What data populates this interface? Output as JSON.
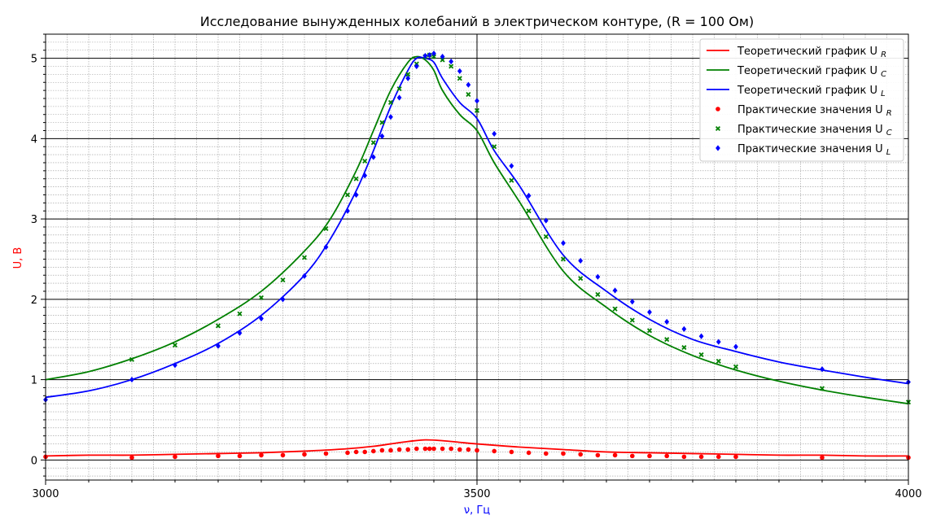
{
  "chart_data": {
    "type": "line",
    "title": "Исследование вынужденных колебаний в электрическом контуре, (R = 100 Ом)",
    "xlabel": "ν, Гц",
    "ylabel": "U, В",
    "xlim": [
      3000,
      4000
    ],
    "ylim": [
      -0.25,
      5.3
    ],
    "x_major_ticks": [
      3000,
      3500,
      4000
    ],
    "x_tick_labels": [
      "3000",
      "3500",
      "4000"
    ],
    "y_major_ticks": [
      0,
      1,
      2,
      3,
      4,
      5
    ],
    "y_tick_labels": [
      "0",
      "1",
      "2",
      "3",
      "4",
      "5"
    ],
    "grid": "major solid black, minor dotted gray",
    "legend_position": "top-right",
    "colors": {
      "R": "#e41a1c",
      "C": "#1a7f1a",
      "L": "#1010ee",
      "title": "#000000",
      "axis_label": "#ff0000",
      "x_label": "#0000ff"
    },
    "series": [
      {
        "name": "Теоретический график U",
        "sub": "R",
        "kind": "line",
        "color": "#ff0000",
        "x": [
          3000,
          3050,
          3100,
          3150,
          3200,
          3250,
          3300,
          3350,
          3380,
          3400,
          3420,
          3440,
          3460,
          3480,
          3500,
          3550,
          3600,
          3650,
          3700,
          3750,
          3800,
          3850,
          3900,
          3950,
          4000
        ],
        "y": [
          0.05,
          0.06,
          0.06,
          0.07,
          0.08,
          0.09,
          0.11,
          0.14,
          0.17,
          0.2,
          0.23,
          0.25,
          0.24,
          0.22,
          0.2,
          0.16,
          0.13,
          0.1,
          0.09,
          0.08,
          0.07,
          0.06,
          0.06,
          0.05,
          0.05
        ]
      },
      {
        "name": "Теоретический график U",
        "sub": "C",
        "kind": "line",
        "color": "#008000",
        "x": [
          3000,
          3050,
          3100,
          3150,
          3200,
          3250,
          3300,
          3330,
          3360,
          3380,
          3400,
          3420,
          3430,
          3440,
          3450,
          3460,
          3480,
          3500,
          3520,
          3550,
          3600,
          3650,
          3700,
          3750,
          3800,
          3850,
          3900,
          3950,
          4000
        ],
        "y": [
          1.0,
          1.1,
          1.26,
          1.47,
          1.75,
          2.1,
          2.6,
          3.0,
          3.6,
          4.1,
          4.6,
          4.95,
          5.02,
          4.98,
          4.85,
          4.6,
          4.3,
          4.1,
          3.7,
          3.2,
          2.35,
          1.9,
          1.55,
          1.3,
          1.12,
          0.98,
          0.87,
          0.78,
          0.7
        ]
      },
      {
        "name": "Теоретический график U",
        "sub": "L",
        "kind": "line",
        "color": "#0000ff",
        "x": [
          3000,
          3050,
          3100,
          3150,
          3200,
          3250,
          3300,
          3330,
          3360,
          3380,
          3400,
          3420,
          3430,
          3440,
          3450,
          3460,
          3480,
          3500,
          3520,
          3550,
          3600,
          3650,
          3700,
          3750,
          3800,
          3850,
          3900,
          3950,
          4000
        ],
        "y": [
          0.78,
          0.86,
          1.0,
          1.2,
          1.45,
          1.8,
          2.3,
          2.75,
          3.35,
          3.85,
          4.4,
          4.85,
          5.0,
          5.0,
          4.95,
          4.75,
          4.45,
          4.25,
          3.85,
          3.4,
          2.55,
          2.1,
          1.75,
          1.5,
          1.35,
          1.22,
          1.12,
          1.03,
          0.95
        ]
      },
      {
        "name": "Практические значения U",
        "sub": "R",
        "kind": "scatter",
        "marker": "circle",
        "color": "#ff0000",
        "x": [
          3000,
          3100,
          3150,
          3200,
          3225,
          3250,
          3275,
          3300,
          3325,
          3350,
          3360,
          3370,
          3380,
          3390,
          3400,
          3410,
          3420,
          3430,
          3440,
          3445,
          3450,
          3460,
          3470,
          3480,
          3490,
          3500,
          3520,
          3540,
          3560,
          3580,
          3600,
          3620,
          3640,
          3660,
          3680,
          3700,
          3720,
          3740,
          3760,
          3780,
          3800,
          3900,
          4000
        ],
        "y": [
          0.04,
          0.03,
          0.04,
          0.05,
          0.05,
          0.06,
          0.06,
          0.07,
          0.08,
          0.09,
          0.1,
          0.1,
          0.11,
          0.12,
          0.12,
          0.13,
          0.13,
          0.14,
          0.14,
          0.14,
          0.14,
          0.14,
          0.14,
          0.13,
          0.13,
          0.12,
          0.11,
          0.1,
          0.09,
          0.08,
          0.08,
          0.07,
          0.06,
          0.06,
          0.05,
          0.05,
          0.05,
          0.04,
          0.04,
          0.04,
          0.04,
          0.03,
          0.03
        ]
      },
      {
        "name": "Практические значения U",
        "sub": "C",
        "kind": "scatter",
        "marker": "x",
        "color": "#008000",
        "x": [
          3100,
          3150,
          3200,
          3225,
          3250,
          3275,
          3300,
          3325,
          3350,
          3360,
          3370,
          3380,
          3390,
          3400,
          3410,
          3420,
          3430,
          3440,
          3445,
          3450,
          3460,
          3470,
          3480,
          3490,
          3500,
          3520,
          3540,
          3560,
          3580,
          3600,
          3620,
          3640,
          3660,
          3680,
          3700,
          3720,
          3740,
          3760,
          3780,
          3800,
          3900,
          4000
        ],
        "y": [
          1.25,
          1.43,
          1.67,
          1.82,
          2.02,
          2.24,
          2.52,
          2.88,
          3.3,
          3.5,
          3.72,
          3.95,
          4.2,
          4.45,
          4.62,
          4.8,
          4.93,
          5.02,
          5.04,
          5.02,
          4.98,
          4.9,
          4.75,
          4.55,
          4.35,
          3.9,
          3.48,
          3.1,
          2.78,
          2.5,
          2.26,
          2.06,
          1.88,
          1.74,
          1.61,
          1.5,
          1.4,
          1.31,
          1.23,
          1.16,
          0.89,
          0.72
        ]
      },
      {
        "name": "Практические значения U",
        "sub": "L",
        "kind": "scatter",
        "marker": "diamond",
        "color": "#0000ff",
        "x": [
          3000,
          3100,
          3150,
          3200,
          3225,
          3250,
          3275,
          3300,
          3325,
          3350,
          3360,
          3370,
          3380,
          3390,
          3400,
          3410,
          3420,
          3430,
          3440,
          3445,
          3450,
          3460,
          3470,
          3480,
          3490,
          3500,
          3520,
          3540,
          3560,
          3580,
          3600,
          3620,
          3640,
          3660,
          3680,
          3700,
          3720,
          3740,
          3760,
          3780,
          3800,
          3900,
          4000
        ],
        "y": [
          0.75,
          1.0,
          1.18,
          1.42,
          1.58,
          1.76,
          2.0,
          2.29,
          2.65,
          3.1,
          3.3,
          3.54,
          3.77,
          4.03,
          4.27,
          4.51,
          4.75,
          4.9,
          5.03,
          5.04,
          5.06,
          5.02,
          4.96,
          4.84,
          4.67,
          4.47,
          4.06,
          3.66,
          3.29,
          2.98,
          2.7,
          2.48,
          2.28,
          2.11,
          1.97,
          1.84,
          1.72,
          1.63,
          1.54,
          1.47,
          1.41,
          1.13,
          0.97
        ]
      }
    ]
  }
}
